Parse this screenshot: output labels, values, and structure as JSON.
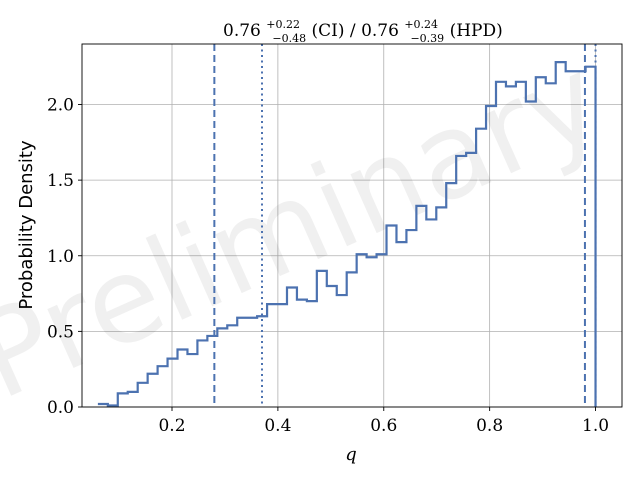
{
  "chart_data": {
    "type": "histogram-step",
    "title": {
      "value": "0.76",
      "ci_plus": "+0.22",
      "ci_minus": "−0.48",
      "ci_tag": "(CI)",
      "sep": "/",
      "value2": "0.76",
      "hpd_plus": "+0.24",
      "hpd_minus": "−0.39",
      "hpd_tag": "(HPD)"
    },
    "xlabel": "q",
    "ylabel": "Probability Density",
    "xlim": [
      0.03,
      1.05
    ],
    "ylim": [
      0.0,
      2.4
    ],
    "xticks": [
      0.2,
      0.4,
      0.6,
      0.8,
      1.0
    ],
    "xtick_labels": [
      "0.2",
      "0.4",
      "0.6",
      "0.8",
      "1.0"
    ],
    "yticks": [
      0.0,
      0.5,
      1.0,
      1.5,
      2.0
    ],
    "ytick_labels": [
      "0.0",
      "0.5",
      "1.0",
      "1.5",
      "2.0"
    ],
    "grid": true,
    "watermark": "Preliminary",
    "bin_start": 0.06,
    "bin_width": 0.0188,
    "densities": [
      0.02,
      0.01,
      0.09,
      0.1,
      0.16,
      0.22,
      0.27,
      0.32,
      0.38,
      0.35,
      0.44,
      0.47,
      0.52,
      0.54,
      0.59,
      0.59,
      0.6,
      0.68,
      0.68,
      0.79,
      0.71,
      0.7,
      0.9,
      0.8,
      0.74,
      0.89,
      1.01,
      0.99,
      1.01,
      1.2,
      1.09,
      1.17,
      1.33,
      1.24,
      1.32,
      1.48,
      1.66,
      1.68,
      1.84,
      1.99,
      2.15,
      2.12,
      2.15,
      2.02,
      2.18,
      2.14,
      2.28,
      2.22,
      2.22,
      2.25
    ],
    "step_color": "#4c72b0",
    "markers": [
      {
        "name": "ci-lower",
        "x": 0.28,
        "style": "dashed"
      },
      {
        "name": "hpd-lower",
        "x": 0.37,
        "style": "dotted"
      },
      {
        "name": "ci-upper",
        "x": 0.98,
        "style": "dashed"
      },
      {
        "name": "hpd-upper",
        "x": 1.0,
        "style": "dotted"
      }
    ]
  }
}
